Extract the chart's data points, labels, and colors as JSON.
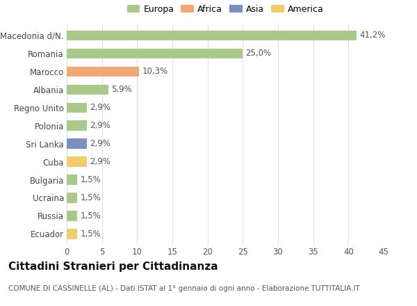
{
  "categories": [
    "Macedonia d/N.",
    "Romania",
    "Marocco",
    "Albania",
    "Regno Unito",
    "Polonia",
    "Sri Lanka",
    "Cuba",
    "Bulgaria",
    "Ucraina",
    "Russia",
    "Ecuador"
  ],
  "values": [
    41.2,
    25.0,
    10.3,
    5.9,
    2.9,
    2.9,
    2.9,
    2.9,
    1.5,
    1.5,
    1.5,
    1.5
  ],
  "labels": [
    "41,2%",
    "25,0%",
    "10,3%",
    "5,9%",
    "2,9%",
    "2,9%",
    "2,9%",
    "2,9%",
    "1,5%",
    "1,5%",
    "1,5%",
    "1,5%"
  ],
  "colors": [
    "#a8c98a",
    "#a8c98a",
    "#f0a875",
    "#a8c98a",
    "#a8c98a",
    "#a8c98a",
    "#7a8fc2",
    "#f0cc6a",
    "#a8c98a",
    "#a8c98a",
    "#a8c98a",
    "#f0cc6a"
  ],
  "legend": [
    {
      "label": "Europa",
      "color": "#a8c98a"
    },
    {
      "label": "Africa",
      "color": "#f0a875"
    },
    {
      "label": "Asia",
      "color": "#7a8fc2"
    },
    {
      "label": "America",
      "color": "#f0cc6a"
    }
  ],
  "title": "Cittadini Stranieri per Cittadinanza",
  "subtitle": "COMUNE DI CASSINELLE (AL) - Dati ISTAT al 1° gennaio di ogni anno - Elaborazione TUTTITALIA.IT",
  "xlim": [
    0,
    45
  ],
  "xticks": [
    0,
    5,
    10,
    15,
    20,
    25,
    30,
    35,
    40,
    45
  ],
  "background_color": "#ffffff",
  "grid_color": "#e0e0e0",
  "bar_height": 0.55,
  "label_fontsize": 8.5,
  "tick_fontsize": 8.5,
  "title_fontsize": 11,
  "subtitle_fontsize": 7.5
}
